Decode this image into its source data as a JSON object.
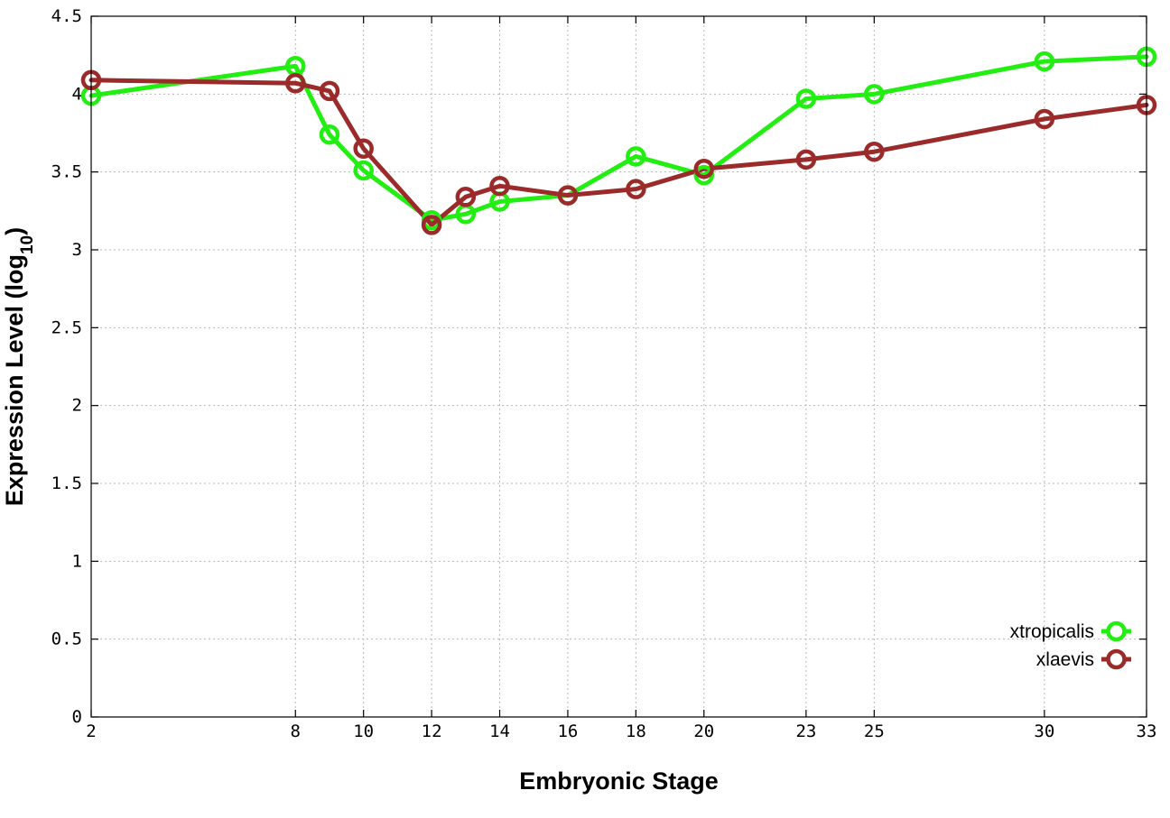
{
  "chart_data": {
    "type": "line",
    "xlabel": "Embryonic Stage",
    "ylabel_main": "Expression Level (log",
    "ylabel_sub": "10",
    "ylabel_close": ")",
    "xlim": [
      2,
      33
    ],
    "ylim": [
      0,
      4.5
    ],
    "x_ticks": [
      2,
      8,
      10,
      12,
      14,
      16,
      18,
      20,
      23,
      25,
      30,
      33
    ],
    "x_tick_labels": [
      "2",
      "8",
      "10",
      "12",
      "14",
      "16",
      "18",
      "20",
      "23",
      "25",
      "30",
      "33"
    ],
    "y_ticks": [
      0,
      0.5,
      1,
      1.5,
      2,
      2.5,
      3,
      3.5,
      4,
      4.5
    ],
    "y_tick_labels": [
      "0",
      "0.5",
      "1",
      "1.5",
      "2",
      "2.5",
      "3",
      "3.5",
      "4",
      "4.5"
    ],
    "grid": true,
    "legend_position": "bottom-right",
    "series": [
      {
        "name": "xtropicalis",
        "color": "#22ee11",
        "x": [
          2,
          8,
          9,
          10,
          12,
          13,
          14,
          16,
          18,
          20,
          23,
          25,
          30,
          33
        ],
        "y": [
          3.99,
          4.18,
          3.74,
          3.51,
          3.19,
          3.23,
          3.31,
          3.35,
          3.6,
          3.48,
          3.97,
          4.0,
          4.21,
          4.24
        ]
      },
      {
        "name": "xlaevis",
        "color": "#9b2a2a",
        "x": [
          2,
          8,
          9,
          10,
          12,
          13,
          14,
          16,
          18,
          20,
          23,
          25,
          30,
          33
        ],
        "y": [
          4.09,
          4.07,
          4.02,
          3.65,
          3.16,
          3.34,
          3.41,
          3.35,
          3.39,
          3.52,
          3.58,
          3.63,
          3.84,
          3.93
        ]
      }
    ]
  }
}
